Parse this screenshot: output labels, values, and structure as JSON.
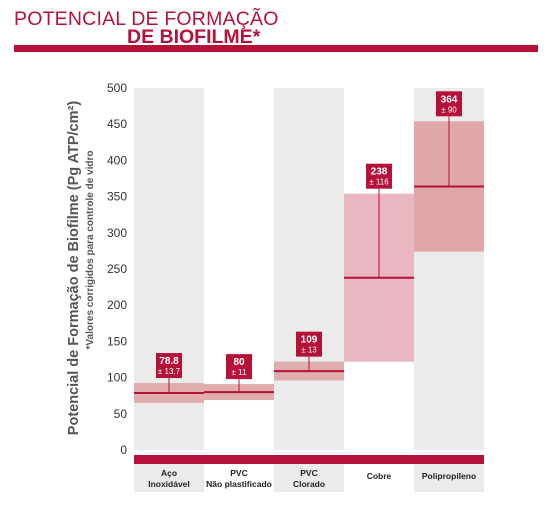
{
  "header": {
    "title_line1": "POTENCIAL DE FORMAÇÃO",
    "title_line2": "DE BIOFILME*"
  },
  "colors": {
    "brand_red": "#b5123a",
    "column_bg": "#ebebeb",
    "band_1": "#e0adad",
    "band_2": "#e8b7c2",
    "band_3": "#dfa7a7"
  },
  "chart_data": {
    "type": "bar",
    "ylabel": "Potencial de Formação de Biofilme (Pg ATP/cm²)",
    "ylabel_note": "*Valores corrigidos para controle de vidro",
    "ylim": [
      0,
      500
    ],
    "yticks": [
      0,
      50,
      100,
      150,
      200,
      250,
      300,
      350,
      400,
      450,
      500
    ],
    "grid": false,
    "categories": [
      [
        "Aço",
        "Inoxidável"
      ],
      [
        "PVC",
        "Não plastificado"
      ],
      [
        "PVC",
        "Clorado"
      ],
      [
        "Cobre"
      ],
      [
        "Polipropileno"
      ]
    ],
    "values": [
      78.8,
      80,
      109,
      238,
      364
    ],
    "errors": [
      13.7,
      11,
      13,
      116,
      90
    ],
    "value_labels": [
      "78.8",
      "80",
      "109",
      "238",
      "364"
    ],
    "error_labels": [
      "± 13.7",
      "± 11",
      "± 13",
      "± 116",
      "± 90"
    ]
  }
}
